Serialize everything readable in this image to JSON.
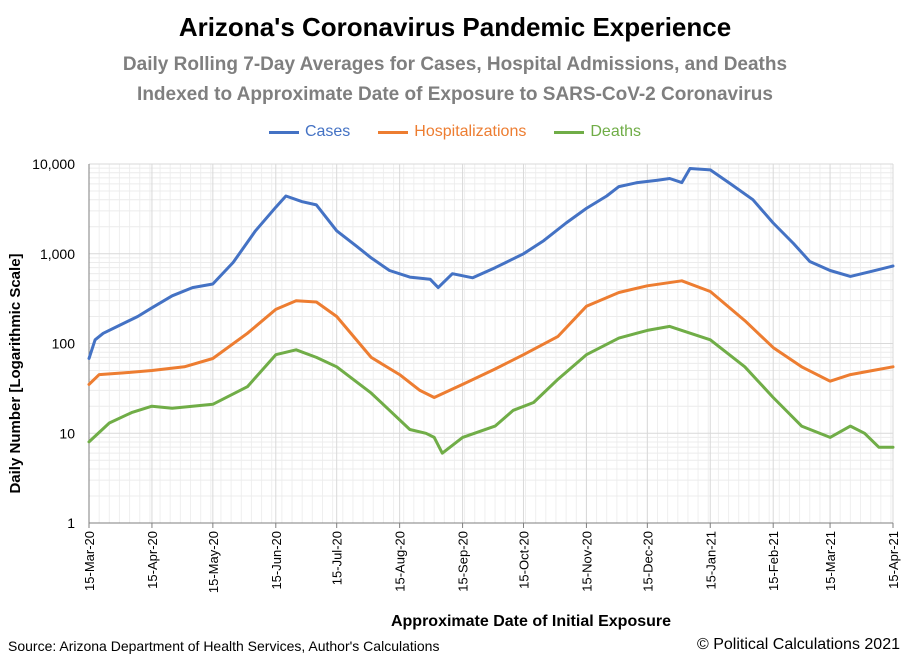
{
  "header": {
    "title": "Arizona's Coronavirus Pandemic Experience",
    "subtitle_line1": "Daily Rolling 7-Day Averages for Cases, Hospital Admissions, and Deaths",
    "subtitle_line2": "Indexed to Approximate Date of Exposure to SARS-CoV-2 Coronavirus"
  },
  "footer": {
    "source": "Source: Arizona Department of Health Services, Author's Calculations",
    "copyright": "© Political Calculations 2021"
  },
  "colors": {
    "cases": "#4472c4",
    "hospitalizations": "#ed7d31",
    "deaths": "#70ad47",
    "grid": "#d9d9d9",
    "axis": "#7f7f7f"
  },
  "chart_data": {
    "type": "line",
    "title": "Arizona's Coronavirus Pandemic Experience",
    "xlabel": "Approximate Date of Initial Exposure",
    "ylabel": "Daily Number [Logarithmic Scale]",
    "y_scale": "log",
    "ylim": [
      1,
      10000
    ],
    "y_ticks": [
      1,
      10,
      100,
      1000,
      10000
    ],
    "y_tick_labels": [
      "1",
      "10",
      "100",
      "1,000",
      "10,000"
    ],
    "xlim": [
      "2020-03-15",
      "2021-04-15"
    ],
    "x_ticks": [
      "2020-03-15",
      "2020-04-15",
      "2020-05-15",
      "2020-06-15",
      "2020-07-15",
      "2020-08-15",
      "2020-09-15",
      "2020-10-15",
      "2020-11-15",
      "2020-12-15",
      "2021-01-15",
      "2021-02-15",
      "2021-03-15",
      "2021-04-15"
    ],
    "x_tick_labels": [
      "15-Mar-20",
      "15-Apr-20",
      "15-May-20",
      "15-Jun-20",
      "15-Jul-20",
      "15-Aug-20",
      "15-Sep-20",
      "15-Oct-20",
      "15-Nov-20",
      "15-Dec-20",
      "15-Jan-21",
      "15-Feb-21",
      "15-Mar-21",
      "15-Apr-21"
    ],
    "grid": true,
    "legend_position": "top",
    "series": [
      {
        "name": "Cases",
        "color": "#4472c4",
        "x": [
          "2020-03-15",
          "2020-03-18",
          "2020-03-22",
          "2020-03-29",
          "2020-04-08",
          "2020-04-15",
          "2020-04-25",
          "2020-05-05",
          "2020-05-15",
          "2020-05-25",
          "2020-06-05",
          "2020-06-15",
          "2020-06-20",
          "2020-06-28",
          "2020-07-05",
          "2020-07-15",
          "2020-07-25",
          "2020-08-01",
          "2020-08-10",
          "2020-08-20",
          "2020-08-30",
          "2020-09-03",
          "2020-09-10",
          "2020-09-20",
          "2020-10-01",
          "2020-10-15",
          "2020-10-25",
          "2020-11-05",
          "2020-11-15",
          "2020-11-25",
          "2020-12-01",
          "2020-12-10",
          "2020-12-20",
          "2020-12-26",
          "2021-01-01",
          "2021-01-05",
          "2021-01-15",
          "2021-01-25",
          "2021-02-05",
          "2021-02-15",
          "2021-02-25",
          "2021-03-05",
          "2021-03-15",
          "2021-03-25",
          "2021-04-05",
          "2021-04-15"
        ],
        "values": [
          68,
          110,
          130,
          155,
          200,
          250,
          340,
          420,
          460,
          800,
          1800,
          3300,
          4400,
          3800,
          3500,
          1800,
          1200,
          900,
          650,
          550,
          520,
          420,
          600,
          540,
          700,
          1000,
          1400,
          2200,
          3200,
          4400,
          5600,
          6200,
          6600,
          6900,
          6200,
          8900,
          8600,
          6000,
          4000,
          2200,
          1300,
          820,
          650,
          560,
          640,
          730
        ]
      },
      {
        "name": "Hospitalizations",
        "color": "#ed7d31",
        "x": [
          "2020-03-15",
          "2020-03-20",
          "2020-04-01",
          "2020-04-15",
          "2020-05-01",
          "2020-05-15",
          "2020-06-01",
          "2020-06-15",
          "2020-06-25",
          "2020-07-05",
          "2020-07-15",
          "2020-08-01",
          "2020-08-15",
          "2020-08-25",
          "2020-09-01",
          "2020-09-15",
          "2020-10-01",
          "2020-10-15",
          "2020-11-01",
          "2020-11-15",
          "2020-12-01",
          "2020-12-15",
          "2021-01-01",
          "2021-01-15",
          "2021-02-01",
          "2021-02-15",
          "2021-03-01",
          "2021-03-15",
          "2021-03-25",
          "2021-04-05",
          "2021-04-15"
        ],
        "values": [
          35,
          45,
          47,
          50,
          55,
          68,
          130,
          240,
          300,
          290,
          200,
          70,
          45,
          30,
          25,
          35,
          52,
          75,
          120,
          260,
          370,
          440,
          500,
          380,
          180,
          90,
          55,
          38,
          45,
          50,
          55
        ]
      },
      {
        "name": "Deaths",
        "color": "#70ad47",
        "x": [
          "2020-03-15",
          "2020-03-25",
          "2020-04-05",
          "2020-04-15",
          "2020-04-25",
          "2020-05-05",
          "2020-05-15",
          "2020-06-01",
          "2020-06-15",
          "2020-06-25",
          "2020-07-05",
          "2020-07-15",
          "2020-08-01",
          "2020-08-10",
          "2020-08-20",
          "2020-08-28",
          "2020-09-01",
          "2020-09-05",
          "2020-09-15",
          "2020-10-01",
          "2020-10-10",
          "2020-10-20",
          "2020-11-01",
          "2020-11-15",
          "2020-12-01",
          "2020-12-15",
          "2020-12-26",
          "2021-01-01",
          "2021-01-15",
          "2021-02-01",
          "2021-02-15",
          "2021-03-01",
          "2021-03-15",
          "2021-03-25",
          "2021-04-01",
          "2021-04-08",
          "2021-04-15"
        ],
        "values": [
          8,
          13,
          17,
          20,
          19,
          20,
          21,
          33,
          75,
          85,
          70,
          55,
          28,
          18,
          11,
          10,
          9,
          6,
          9,
          12,
          18,
          22,
          40,
          75,
          115,
          140,
          155,
          140,
          110,
          55,
          25,
          12,
          9,
          12,
          10,
          7,
          7
        ]
      }
    ]
  }
}
